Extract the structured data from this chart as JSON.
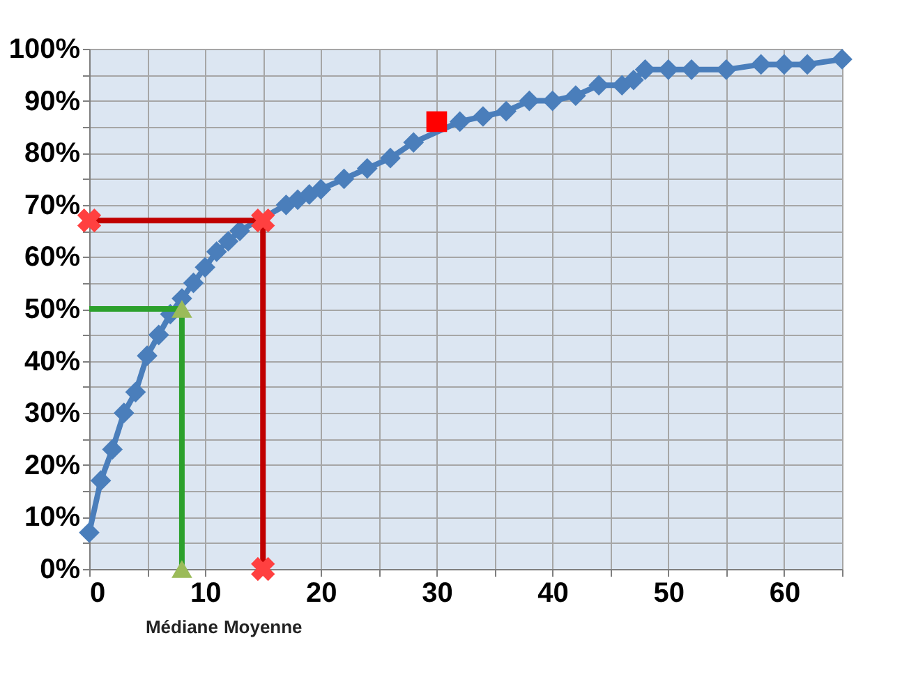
{
  "chart_data": {
    "type": "line",
    "xlim": [
      0,
      65
    ],
    "ylim": [
      0,
      100
    ],
    "xticks": [
      0,
      {
        "value": 5,
        "label": null
      },
      10,
      {
        "value": 15,
        "label": null
      },
      20,
      {
        "value": 25,
        "label": null
      },
      30,
      {
        "value": 35,
        "label": null
      },
      40,
      {
        "value": 45,
        "label": null
      },
      50,
      {
        "value": 55,
        "label": null
      },
      60,
      {
        "value": 65,
        "label": null
      }
    ],
    "yticks": [
      {
        "value": 0,
        "label": "0%"
      },
      {
        "value": 5,
        "label": null
      },
      {
        "value": 10,
        "label": "10%"
      },
      {
        "value": 15,
        "label": null
      },
      {
        "value": 20,
        "label": "20%"
      },
      {
        "value": 25,
        "label": null
      },
      {
        "value": 30,
        "label": "30%"
      },
      {
        "value": 35,
        "label": null
      },
      {
        "value": 40,
        "label": "40%"
      },
      {
        "value": 45,
        "label": null
      },
      {
        "value": 50,
        "label": "50%"
      },
      {
        "value": 55,
        "label": null
      },
      {
        "value": 60,
        "label": "60%"
      },
      {
        "value": 65,
        "label": null
      },
      {
        "value": 70,
        "label": "70%"
      },
      {
        "value": 75,
        "label": null
      },
      {
        "value": 80,
        "label": "80%"
      },
      {
        "value": 85,
        "label": null
      },
      {
        "value": 90,
        "label": "90%"
      },
      {
        "value": 95,
        "label": null
      },
      {
        "value": 100,
        "label": "100%"
      }
    ],
    "grid": true,
    "series": [
      {
        "color": "#4a7ebb",
        "marker": "diamond",
        "x": [
          0,
          1,
          2,
          3,
          4,
          5,
          6,
          7,
          8,
          9,
          10,
          11,
          12,
          13,
          17,
          18,
          19,
          20,
          22,
          24,
          26,
          28,
          32,
          34,
          36,
          38,
          40,
          42,
          44,
          46,
          47,
          48,
          50,
          52,
          55,
          58,
          60,
          62,
          65
        ],
        "values": [
          7,
          17,
          23,
          30,
          34,
          41,
          45,
          49,
          52,
          55,
          58,
          61,
          63,
          65,
          70,
          71,
          72,
          73,
          75,
          77,
          79,
          82,
          86,
          87,
          88,
          90,
          90,
          91,
          93,
          93,
          94,
          96,
          96,
          96,
          96,
          97,
          97,
          97,
          98
        ]
      },
      {
        "type": "scatter",
        "color": "#ff0000",
        "marker": "square",
        "x": [
          30
        ],
        "values": [
          86
        ]
      },
      {
        "type": "line",
        "color": "#2ca02c",
        "marker": "none",
        "x": [
          0,
          8,
          8
        ],
        "values": [
          50,
          50,
          0
        ]
      },
      {
        "type": "scatter",
        "color": "#9bbb59",
        "marker": "triangle",
        "x": [
          8,
          8
        ],
        "values": [
          50,
          0
        ]
      },
      {
        "type": "line",
        "color": "#c00000",
        "marker": "cross",
        "x": [
          0,
          15,
          15
        ],
        "values": [
          67,
          67,
          0
        ]
      }
    ],
    "annotations": [
      {
        "text": "Médiane",
        "x": 8,
        "y": 0
      },
      {
        "text": "Moyenne",
        "x": 15,
        "y": 0
      }
    ]
  }
}
